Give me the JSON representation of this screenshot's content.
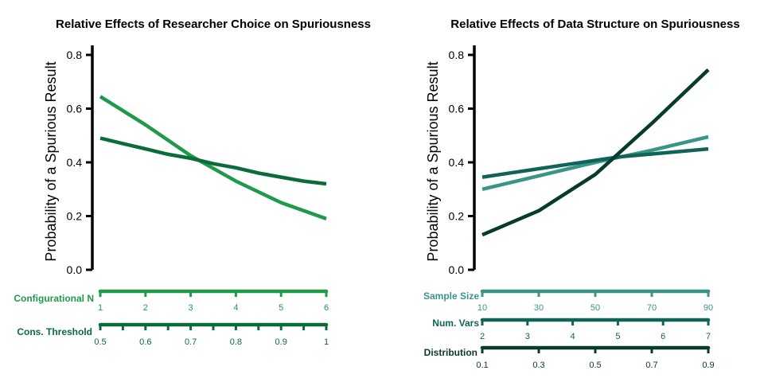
{
  "chart_data": [
    {
      "type": "line",
      "title": "Relative Effects of Researcher Choice on Spuriousness",
      "ylabel": "Probability of a Spurious Result",
      "ylim": [
        0,
        0.8
      ],
      "yticks": [
        "0.0",
        "0.2",
        "0.4",
        "0.6",
        "0.8"
      ],
      "grid": false,
      "x_axes": [
        {
          "name": "Configurational N",
          "color": "#1e9a4a",
          "ticks": [
            "1",
            "2",
            "3",
            "4",
            "5",
            "6"
          ],
          "minor_ticks": false
        },
        {
          "name": "Cons. Threshold",
          "color": "#0b6b3a",
          "ticks": [
            "0.5",
            "0.6",
            "0.7",
            "0.8",
            "0.9",
            "1"
          ],
          "minor_ticks": true
        }
      ],
      "series": [
        {
          "axis": "Configurational N",
          "color": "#1e9a4a",
          "x": [
            1,
            2,
            3,
            4,
            5,
            6
          ],
          "values": [
            0.645,
            0.54,
            0.425,
            0.33,
            0.25,
            0.19
          ]
        },
        {
          "axis": "Cons. Threshold",
          "color": "#0b6b3a",
          "x": [
            0.5,
            0.55,
            0.6,
            0.65,
            0.7,
            0.75,
            0.8,
            0.85,
            0.9,
            0.95,
            1.0
          ],
          "values": [
            0.49,
            0.47,
            0.45,
            0.43,
            0.415,
            0.395,
            0.38,
            0.36,
            0.345,
            0.33,
            0.32
          ]
        }
      ]
    },
    {
      "type": "line",
      "title": "Relative Effects of Data Structure on Spuriousness",
      "ylabel": "Probability of a Spurious Result",
      "ylim": [
        0,
        0.8
      ],
      "yticks": [
        "0.0",
        "0.2",
        "0.4",
        "0.6",
        "0.8"
      ],
      "grid": false,
      "x_axes": [
        {
          "name": "Sample Size",
          "color": "#3a9488",
          "ticks": [
            "10",
            "30",
            "50",
            "70",
            "90"
          ],
          "minor_ticks": false
        },
        {
          "name": "Num. Vars",
          "color": "#0f6358",
          "ticks": [
            "2",
            "3",
            "4",
            "5",
            "6",
            "7"
          ],
          "minor_ticks": false
        },
        {
          "name": "Distribution",
          "color": "#073b2c",
          "ticks": [
            "0.1",
            "0.3",
            "0.5",
            "0.7",
            "0.9"
          ],
          "minor_ticks": false
        }
      ],
      "series": [
        {
          "axis": "Sample Size",
          "color": "#3a9488",
          "x": [
            10,
            30,
            50,
            70,
            90
          ],
          "values": [
            0.3,
            0.35,
            0.4,
            0.445,
            0.495
          ]
        },
        {
          "axis": "Num. Vars",
          "color": "#0f6358",
          "x": [
            2,
            3,
            4,
            5,
            6,
            7
          ],
          "values": [
            0.345,
            0.37,
            0.395,
            0.42,
            0.435,
            0.45
          ]
        },
        {
          "axis": "Distribution",
          "color": "#073b2c",
          "x": [
            0.1,
            0.3,
            0.5,
            0.7,
            0.9
          ],
          "values": [
            0.13,
            0.22,
            0.355,
            0.545,
            0.745
          ]
        }
      ]
    }
  ]
}
